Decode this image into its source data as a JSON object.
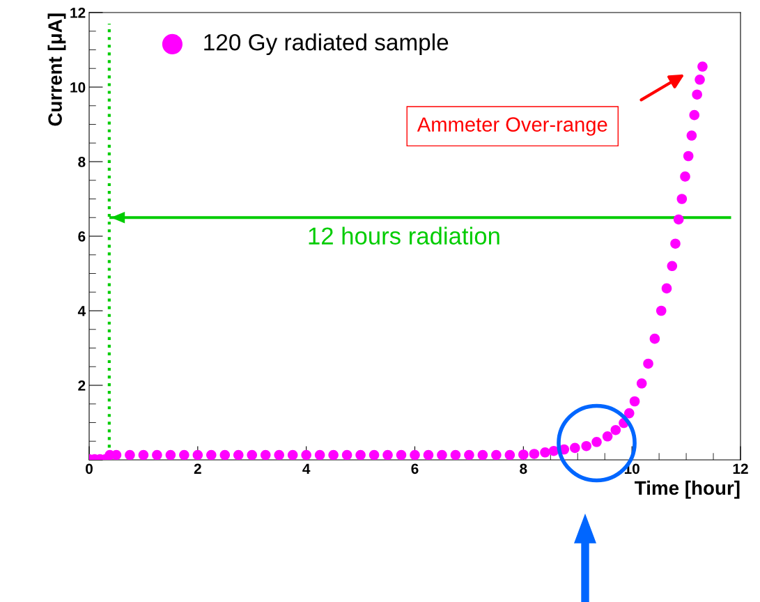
{
  "chart_data": {
    "type": "scatter",
    "xlabel": "Time [hour]",
    "ylabel": "Current [μA]",
    "xlim": [
      0,
      12
    ],
    "ylim": [
      0,
      12
    ],
    "xticks": [
      0,
      2,
      4,
      6,
      8,
      10,
      12
    ],
    "yticks": [
      {
        "value": 0,
        "label": null
      },
      2,
      4,
      6,
      8,
      10,
      12
    ],
    "legend": "top left",
    "grid": false,
    "series": [
      {
        "name": "120 Gy radiated sample",
        "color": "#ff00ff",
        "marker": "circle",
        "x": [
          0,
          0.1,
          0.2,
          0.3,
          0.38,
          0.5,
          0.75,
          1,
          1.25,
          1.5,
          1.75,
          2,
          2.25,
          2.5,
          2.75,
          3,
          3.25,
          3.5,
          3.75,
          4,
          4.25,
          4.5,
          4.75,
          5,
          5.25,
          5.5,
          5.75,
          6,
          6.25,
          6.5,
          6.75,
          7,
          7.25,
          7.5,
          7.75,
          8,
          8.2,
          8.4,
          8.56,
          8.75,
          8.95,
          9.16,
          9.35,
          9.55,
          9.7,
          9.85,
          9.95,
          10.05,
          10.18,
          10.3,
          10.42,
          10.54,
          10.64,
          10.74,
          10.8,
          10.86,
          10.92,
          10.98,
          11.04,
          11.1,
          11.15,
          11.2,
          11.25,
          11.3
        ],
        "values": [
          0.02,
          0.02,
          0.02,
          0.02,
          0.13,
          0.13,
          0.13,
          0.13,
          0.13,
          0.13,
          0.13,
          0.13,
          0.13,
          0.13,
          0.13,
          0.13,
          0.13,
          0.13,
          0.13,
          0.13,
          0.13,
          0.13,
          0.13,
          0.13,
          0.13,
          0.13,
          0.13,
          0.13,
          0.13,
          0.13,
          0.13,
          0.13,
          0.13,
          0.13,
          0.13,
          0.14,
          0.16,
          0.2,
          0.24,
          0.28,
          0.32,
          0.37,
          0.48,
          0.63,
          0.8,
          0.99,
          1.25,
          1.57,
          2.05,
          2.58,
          3.25,
          4.0,
          4.6,
          5.2,
          5.8,
          6.45,
          7.0,
          7.6,
          8.15,
          8.7,
          9.25,
          9.8,
          10.2,
          10.55
        ]
      },
      {
        "type": "line",
        "marker": "none",
        "color": "#00cc00",
        "x": [
          11.8,
          0.4
        ],
        "values": [
          6.5,
          6.5
        ]
      }
    ],
    "ref_lines": [
      {
        "axis": "x",
        "value": 0.37,
        "color": "#00cc00",
        "line_style": "dotted"
      }
    ],
    "annotations": [
      "Ammeter Over-range",
      "12 hours radiation"
    ]
  }
}
